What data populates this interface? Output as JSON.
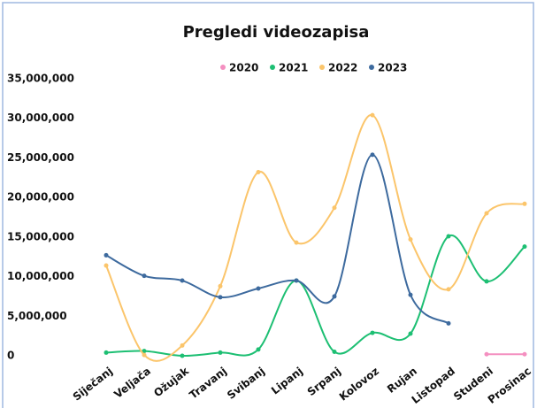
{
  "chart_data": {
    "type": "line",
    "title": "Pregledi videozapisa",
    "categories": [
      "Siječanj",
      "Veljača",
      "Ožujak",
      "Travanj",
      "Svibanj",
      "Lipanj",
      "Srpanj",
      "Kolovoz",
      "Rujan",
      "Listopad",
      "Studeni",
      "Prosinac"
    ],
    "series": [
      {
        "name": "2020",
        "color": "#f48fc0",
        "values": [
          null,
          null,
          null,
          null,
          null,
          null,
          null,
          null,
          null,
          null,
          200000,
          200000
        ]
      },
      {
        "name": "2021",
        "color": "#1dbf73",
        "values": [
          400000,
          600000,
          0,
          400000,
          800000,
          9500000,
          500000,
          2900000,
          2800000,
          15100000,
          9400000,
          13800000
        ]
      },
      {
        "name": "2022",
        "color": "#fbc56b",
        "values": [
          11400000,
          100000,
          1300000,
          8800000,
          23200000,
          14300000,
          18700000,
          30400000,
          14700000,
          8400000,
          18000000,
          19200000
        ]
      },
      {
        "name": "2023",
        "color": "#3d6a9e",
        "values": [
          12700000,
          10100000,
          9500000,
          7400000,
          8500000,
          9500000,
          7500000,
          25400000,
          7700000,
          4100000,
          null,
          null
        ]
      }
    ],
    "ylim": [
      0,
      35000000
    ],
    "yticks": [
      {
        "value": 0,
        "label": "0"
      },
      {
        "value": 5000000,
        "label": "5,000,000"
      },
      {
        "value": 10000000,
        "label": "10,000,000"
      },
      {
        "value": 15000000,
        "label": "15,000,000"
      },
      {
        "value": 20000000,
        "label": "20,000,000"
      },
      {
        "value": 25000000,
        "label": "25,000,000"
      },
      {
        "value": 30000000,
        "label": "30,000,000"
      },
      {
        "value": 35000000,
        "label": "35,000,000"
      }
    ],
    "grid": false,
    "legend": "top"
  }
}
